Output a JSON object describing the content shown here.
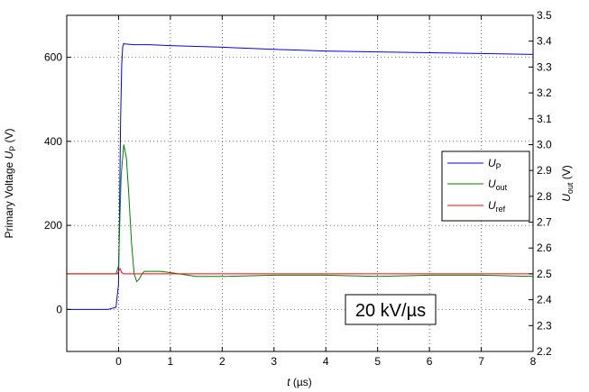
{
  "chart_data": {
    "type": "line",
    "xlabel": {
      "var": "t",
      "unit": " (µs)"
    },
    "ylabel_left": {
      "text": "Primary Voltage ",
      "var": "U",
      "sub": "P",
      "unit": " (V)"
    },
    "ylabel_right": {
      "var": "U",
      "sub": "out",
      "unit": " (V)"
    },
    "xlim": [
      -1,
      8
    ],
    "ylim_left": [
      -100,
      700
    ],
    "ylim_right": [
      2.2,
      3.5
    ],
    "x_ticks": [
      "0",
      "1",
      "2",
      "3",
      "4",
      "5",
      "6",
      "7",
      "8"
    ],
    "y_left_ticks": [
      "0",
      "200",
      "400",
      "600"
    ],
    "y_right_ticks": [
      "2.2",
      "2.3",
      "2.4",
      "2.5",
      "2.6",
      "2.7",
      "2.8",
      "2.9",
      "3.0",
      "3.1",
      "3.2",
      "3.3",
      "3.4",
      "3.5"
    ],
    "grid": true,
    "legend_position": "right-middle",
    "annotation": "20 kV/µs",
    "series": [
      {
        "name": "U_P",
        "legend": {
          "var": "U",
          "sub": "P"
        },
        "axis": "left",
        "color": "#0000ff",
        "x": [
          -1,
          -0.2,
          -0.05,
          0,
          0.02,
          0.04,
          0.06,
          0.08,
          0.1,
          0.12,
          0.3,
          0.6,
          1,
          2,
          3,
          4,
          5,
          6,
          7,
          8
        ],
        "y": [
          0,
          0,
          5,
          60,
          250,
          450,
          580,
          625,
          633,
          632,
          630,
          630,
          628,
          624,
          619,
          615,
          613,
          611,
          609,
          607
        ]
      },
      {
        "name": "U_out",
        "legend": {
          "var": "U",
          "sub": "out"
        },
        "axis": "right",
        "color": "#008000",
        "x": [
          -1,
          -0.05,
          0,
          0.05,
          0.1,
          0.15,
          0.2,
          0.25,
          0.3,
          0.35,
          0.4,
          0.45,
          0.5,
          0.6,
          0.7,
          0.8,
          1,
          1.5,
          2,
          3,
          4,
          5,
          6,
          7,
          8
        ],
        "y": [
          2.5,
          2.5,
          2.53,
          2.88,
          3.0,
          2.95,
          2.8,
          2.62,
          2.5,
          2.47,
          2.48,
          2.5,
          2.51,
          2.51,
          2.51,
          2.51,
          2.505,
          2.49,
          2.49,
          2.495,
          2.495,
          2.49,
          2.495,
          2.495,
          2.49
        ]
      },
      {
        "name": "U_ref",
        "legend": {
          "var": "U",
          "sub": "ref"
        },
        "axis": "right",
        "color": "#ff0000",
        "x": [
          -1,
          -0.02,
          0,
          0.03,
          0.06,
          0.1,
          0.3,
          1,
          2,
          3,
          4,
          5,
          6,
          7,
          8
        ],
        "y": [
          2.5,
          2.5,
          2.51,
          2.52,
          2.505,
          2.5,
          2.5,
          2.5,
          2.5,
          2.5,
          2.5,
          2.5,
          2.5,
          2.5,
          2.5
        ]
      }
    ]
  }
}
